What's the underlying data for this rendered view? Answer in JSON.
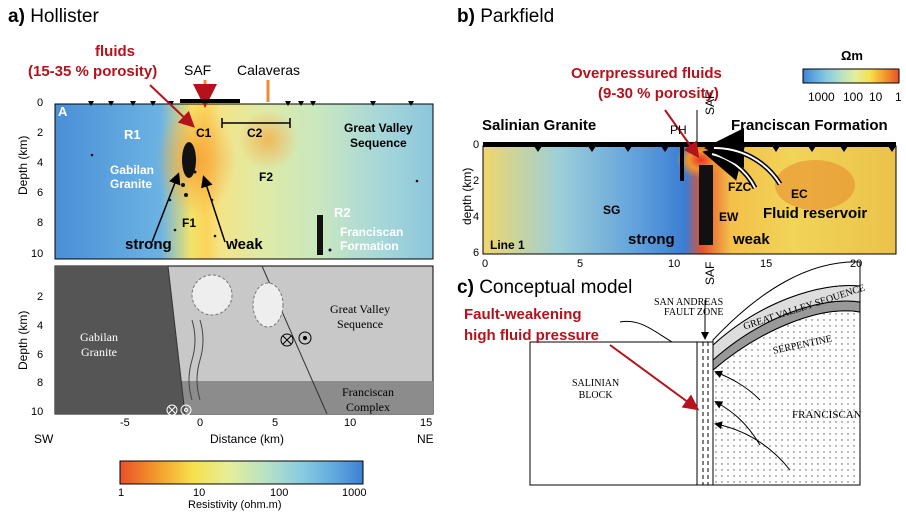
{
  "panel_a": {
    "letter": "a)",
    "title": "Hollister",
    "fluids_line1": "fluids",
    "fluids_line2": "(15-35 % porosity)",
    "fault_saf": "SAF",
    "fault_calaveras": "Calaveras",
    "panel_letter": "A",
    "labels": {
      "r1": "R1",
      "c1": "C1",
      "c2": "C2",
      "f1": "F1",
      "f2": "F2",
      "r2": "R2",
      "gabilan": "Gabilan\nGranite",
      "great_valley": "Great Valley\nSequence",
      "franciscan": "Franciscan\nFormation",
      "strong": "strong",
      "weak": "weak"
    },
    "ylabel": "Depth (km)",
    "depth_ticks": [
      "0",
      "2",
      "4",
      "6",
      "8",
      "10"
    ],
    "lower": {
      "depth_ticks": [
        "2",
        "4",
        "6",
        "8",
        "10"
      ],
      "x_ticks": [
        "-5",
        "0",
        "5",
        "10",
        "15"
      ],
      "sw": "SW",
      "ne": "NE",
      "xlabel": "Distance (km)",
      "gabilan": "Gabilan\nGranite",
      "great_valley": "Great Valley\nSequence",
      "franciscan": "Franciscan\nComplex"
    },
    "colorbar": {
      "ticks": [
        "1",
        "10",
        "100",
        "1000"
      ],
      "label": "Resistivity (ohm.m)"
    }
  },
  "panel_b": {
    "letter": "b)",
    "title": "Parkfield",
    "fluids_line1": "Overpressured fluids",
    "fluids_line2": "(9-30 % porosity)",
    "unit": "Ωm",
    "cb_ticks": [
      "1000",
      "100",
      "10",
      "1"
    ],
    "salinian": "Salinian Granite",
    "franciscan": "Franciscan Formation",
    "ph": "PH",
    "saf": "SAF",
    "saf_bottom": "SAF",
    "fzc": "FZC",
    "ec": "EC",
    "sg": "SG",
    "ew": "EW",
    "reservoir": "Fluid reservoir",
    "strong": "strong",
    "weak": "weak",
    "line": "Line 1",
    "ylabel": "depth (km)",
    "depth_ticks": [
      "0",
      "2",
      "4",
      "6"
    ],
    "x_ticks": [
      "0",
      "5",
      "10",
      "15",
      "20"
    ]
  },
  "panel_c": {
    "letter": "c)",
    "title": "Conceptual model",
    "weak_line1": "Fault-weakening",
    "weak_line2": "high fluid pressure",
    "zone_line1": "SAN ANDREAS",
    "zone_line2": "FAULT ZONE",
    "salinian": "SALINIAN\nBLOCK",
    "gvs": "GREAT VALLEY SEQUENCE",
    "serpentine": "SERPENTINE",
    "franciscan": "FRANCISCAN"
  },
  "colors": {
    "red_text": "#b5121b"
  }
}
